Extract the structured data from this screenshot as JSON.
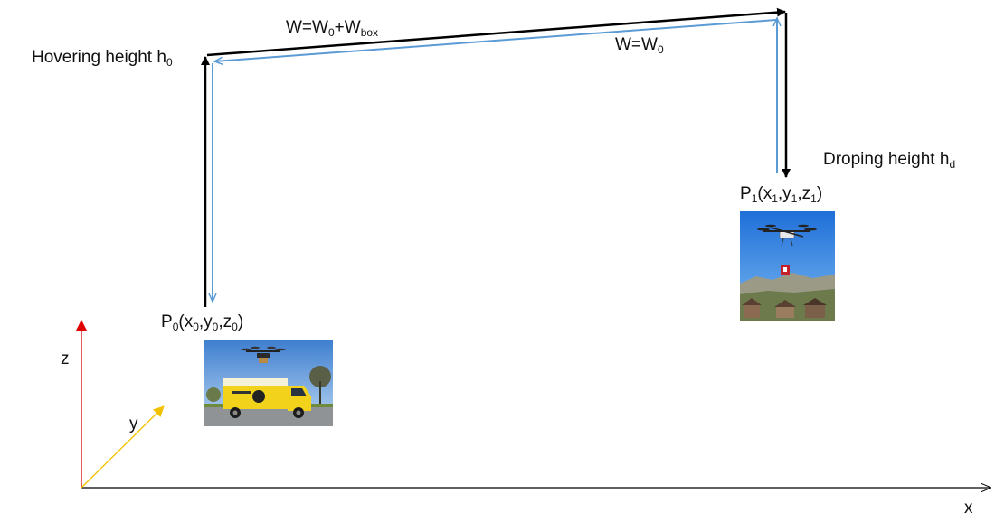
{
  "labels": {
    "hovering_text": "Hovering height h",
    "hovering_sub": "0",
    "droping_text": "Droping height h",
    "droping_sub": "d",
    "weight_full": {
      "a": "W=W",
      "a_sub": "0",
      "b": "+W",
      "b_sub": "box"
    },
    "weight_empty": {
      "a": "W=W",
      "a_sub": "0"
    },
    "p0": {
      "p": "P",
      "p_sub": "0",
      "x": "(x",
      "x_sub": "0",
      "y": ",y",
      "y_sub": "0",
      "z": ",z",
      "z_sub": "0",
      "close": ")"
    },
    "p1": {
      "p": "P",
      "p_sub": "1",
      "x": "(x",
      "x_sub": "1",
      "y": ",y",
      "y_sub": "1",
      "z": ",z",
      "z_sub": "1",
      "close": ")"
    }
  },
  "axes": {
    "x_label": "x",
    "y_label": "y",
    "z_label": "z",
    "x_color": "#000000",
    "y_color": "#f2c200",
    "z_color": "#e00000"
  },
  "path_colors": {
    "loaded": "#000000",
    "unloaded": "#5b9bd5"
  },
  "images": {
    "delivery_truck": "delivery-truck-with-drone-photo",
    "drone_drop": "drone-dropping-package-photo"
  }
}
